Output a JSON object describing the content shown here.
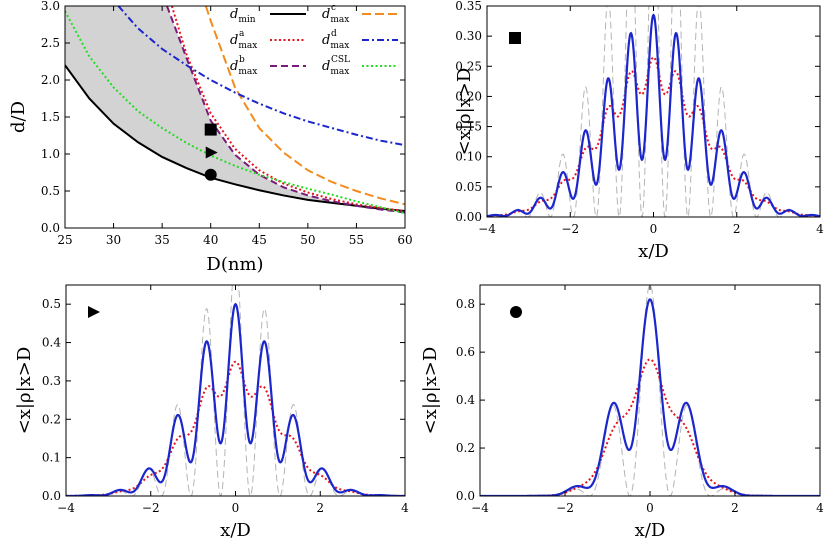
{
  "chart_data": [
    {
      "type": "line",
      "panel": "d_vs_D",
      "xlabel": "D(nm)",
      "ylabel": "d/D",
      "xlim": [
        25,
        60
      ],
      "ylim": [
        0,
        3.0
      ],
      "xticks": [
        "25",
        "30",
        "35",
        "40",
        "45",
        "50",
        "55",
        "60"
      ],
      "yticks": [
        "0.0",
        "0.5",
        "1.0",
        "1.5",
        "2.0",
        "2.5",
        "3.0"
      ],
      "shaded_region": "between d_min and d_max^b, grey",
      "series": [
        {
          "name": "d_min",
          "label_main": "d",
          "label_sub": "min",
          "label_sup": "",
          "color": "#000000",
          "style": "solid",
          "x": [
            25,
            27.5,
            30,
            32.5,
            35,
            37.5,
            40,
            42.5,
            45,
            47.5,
            50,
            52.5,
            55,
            57.5,
            60
          ],
          "y": [
            2.2,
            1.75,
            1.41,
            1.16,
            0.96,
            0.81,
            0.68,
            0.59,
            0.51,
            0.44,
            0.38,
            0.34,
            0.3,
            0.26,
            0.23
          ]
        },
        {
          "name": "d_max^a",
          "label_main": "d",
          "label_sub": "max",
          "label_sup": "a",
          "color": "#e8141c",
          "style": "dotted",
          "x": [
            36,
            37.5,
            40,
            42.5,
            45,
            47.5,
            50,
            52.5,
            55,
            57.5,
            60
          ],
          "y": [
            3.0,
            2.35,
            1.55,
            1.07,
            0.78,
            0.6,
            0.48,
            0.39,
            0.32,
            0.27,
            0.23
          ]
        },
        {
          "name": "d_max^b",
          "label_main": "d",
          "label_sub": "max",
          "label_sup": "b",
          "color": "#7a1a7a",
          "style": "dashed",
          "x": [
            35.5,
            37.5,
            40,
            42.5,
            45,
            47.5,
            50,
            52.5,
            55,
            57.5,
            60
          ],
          "y": [
            3.0,
            2.3,
            1.45,
            0.99,
            0.72,
            0.55,
            0.44,
            0.36,
            0.3,
            0.25,
            0.21
          ]
        },
        {
          "name": "d_max^c",
          "label_main": "d",
          "label_sub": "max",
          "label_sup": "c",
          "color": "#f28c1e",
          "style": "longdash",
          "x": [
            39.5,
            40,
            42.5,
            45,
            47.5,
            50,
            52.5,
            55,
            57.5,
            60
          ],
          "y": [
            3.0,
            2.8,
            1.9,
            1.35,
            1.02,
            0.78,
            0.62,
            0.5,
            0.4,
            0.32
          ]
        },
        {
          "name": "d_max^d",
          "label_main": "d",
          "label_sub": "max",
          "label_sup": "d",
          "color": "#1b27cc",
          "style": "dashdot",
          "x": [
            30.5,
            32.5,
            35,
            37.5,
            40,
            42.5,
            45,
            47.5,
            50,
            52.5,
            55,
            57.5,
            60
          ],
          "y": [
            3.0,
            2.7,
            2.42,
            2.2,
            2.0,
            1.83,
            1.68,
            1.55,
            1.44,
            1.35,
            1.26,
            1.18,
            1.12
          ]
        },
        {
          "name": "d_max^CSL",
          "label_main": "d",
          "label_sub": "max",
          "label_sup": "CSL",
          "color": "#22dd22",
          "style": "dotted",
          "x": [
            25,
            27.5,
            30,
            32.5,
            35,
            37.5,
            40,
            42.5,
            45,
            47.5,
            50,
            52.5,
            55,
            57.5,
            60
          ],
          "y": [
            2.93,
            2.32,
            1.9,
            1.58,
            1.35,
            1.15,
            0.98,
            0.84,
            0.72,
            0.62,
            0.53,
            0.45,
            0.36,
            0.28,
            0.2
          ]
        }
      ],
      "markers": [
        {
          "shape": "square",
          "x": 40,
          "y": 1.33
        },
        {
          "shape": "triangle",
          "x": 40,
          "y": 1.02
        },
        {
          "shape": "circle",
          "x": 40,
          "y": 0.72
        }
      ]
    },
    {
      "type": "line",
      "panel": "square",
      "xlabel": "x/D",
      "ylabel": "<x|ρ|x>D",
      "xlim": [
        -4,
        4
      ],
      "ylim": [
        0,
        0.35
      ],
      "xticks": [
        "-4",
        "-2",
        "0",
        "2",
        "4"
      ],
      "yticks": [
        "0.00",
        "0.05",
        "0.10",
        "0.15",
        "0.20",
        "0.25",
        "0.30",
        "0.35"
      ],
      "marker": "square",
      "envelope_width": 1.2,
      "fringe_spacing": 0.55,
      "series": [
        {
          "name": "blue",
          "color": "#1b27cc",
          "style": "solid",
          "peak": 0.335
        },
        {
          "name": "red",
          "color": "#e8141c",
          "style": "dotted",
          "peak": 0.265
        },
        {
          "name": "grey",
          "color": "#b4b4b4",
          "style": "dashed",
          "peak": 0.55
        }
      ]
    },
    {
      "type": "line",
      "panel": "triangle",
      "xlabel": "x/D",
      "ylabel": "<x|ρ|x>D",
      "xlim": [
        -4,
        4
      ],
      "ylim": [
        0,
        0.55
      ],
      "xticks": [
        "-4",
        "-2",
        "0",
        "2",
        "4"
      ],
      "yticks": [
        "0.0",
        "0.1",
        "0.2",
        "0.3",
        "0.4",
        "0.5"
      ],
      "marker": "triangle",
      "envelope_width": 1.0,
      "fringe_spacing": 0.7,
      "series": [
        {
          "name": "blue",
          "color": "#1b27cc",
          "style": "solid",
          "peak": 0.5
        },
        {
          "name": "red",
          "color": "#e8141c",
          "style": "dotted",
          "peak": 0.35
        },
        {
          "name": "grey",
          "color": "#b4b4b4",
          "style": "dashed",
          "peak": 0.62
        }
      ]
    },
    {
      "type": "line",
      "panel": "circle",
      "xlabel": "x/D",
      "ylabel": "<x|ρ|x>D",
      "xlim": [
        -4,
        4
      ],
      "ylim": [
        0,
        0.88
      ],
      "xticks": [
        "-4",
        "-2",
        "0",
        "2",
        "4"
      ],
      "yticks": [
        "0.0",
        "0.2",
        "0.4",
        "0.6",
        "0.8"
      ],
      "marker": "circle",
      "envelope_width": 0.7,
      "fringe_spacing": 0.95,
      "series": [
        {
          "name": "blue",
          "color": "#1b27cc",
          "style": "solid",
          "peak": 0.82
        },
        {
          "name": "red",
          "color": "#e8141c",
          "style": "dotted",
          "peak": 0.57
        },
        {
          "name": "grey",
          "color": "#b4b4b4",
          "style": "dashed",
          "peak": 0.88
        }
      ]
    }
  ]
}
